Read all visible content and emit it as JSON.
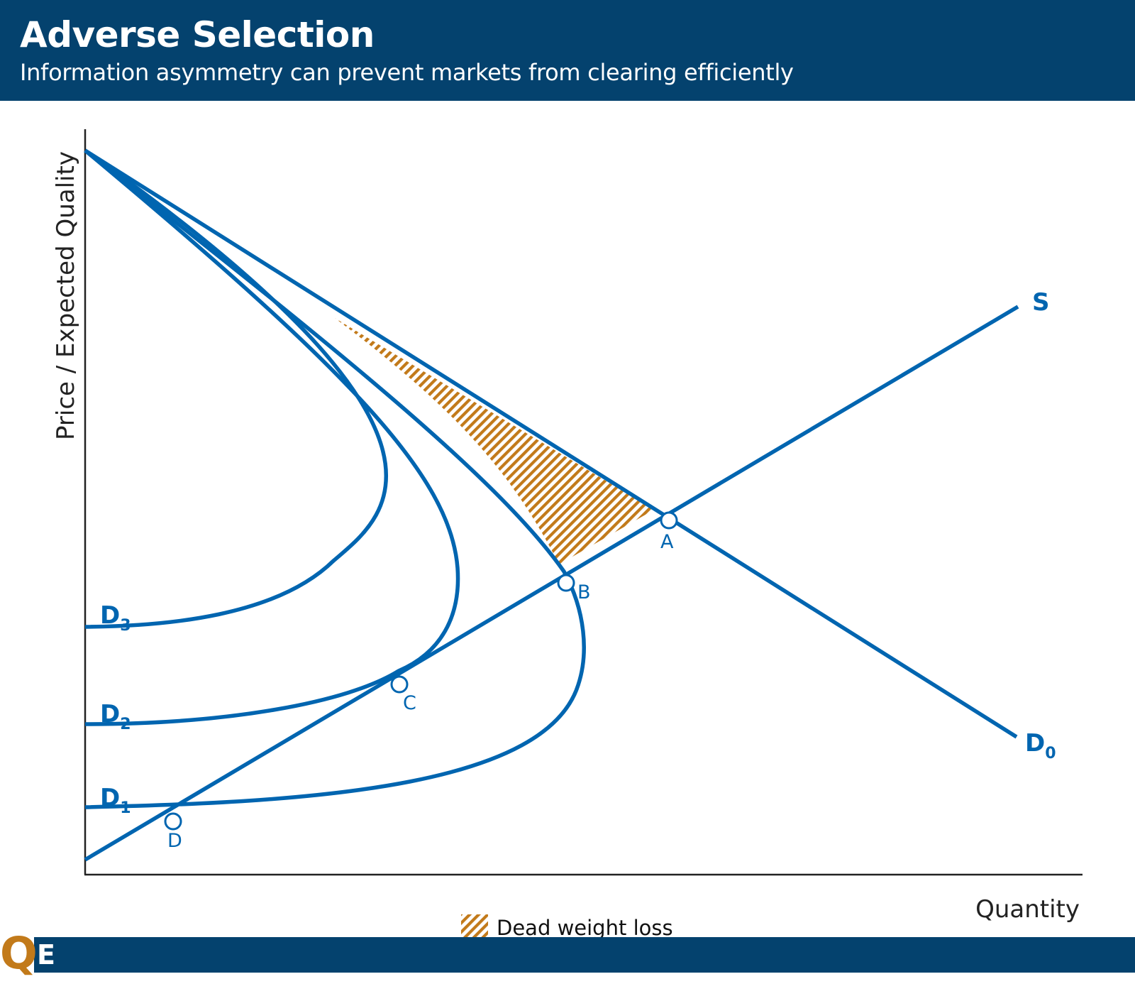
{
  "header": {
    "title": "Adverse Selection",
    "subtitle": "Information asymmetry can prevent markets from clearing efficiently"
  },
  "colors": {
    "header_bg": "#04426e",
    "curve": "#0065b0",
    "deadweight": "#c27a1a",
    "axis": "#222222"
  },
  "diagram": {
    "y_axis_label": "Price / Expected Quality",
    "x_axis_label": "Quantity",
    "curves": {
      "supply": {
        "label": "S"
      },
      "d0": {
        "label": "D",
        "subscript": "0"
      },
      "d1": {
        "label": "D",
        "subscript": "1"
      },
      "d2": {
        "label": "D",
        "subscript": "2"
      },
      "d3": {
        "label": "D",
        "subscript": "3"
      }
    },
    "points": [
      "A",
      "B",
      "C",
      "D"
    ],
    "legend": {
      "label": "Dead weight loss",
      "pattern": "diagonal-hatch"
    }
  },
  "footer": {
    "logo_q": "Q",
    "logo_e": "E"
  }
}
